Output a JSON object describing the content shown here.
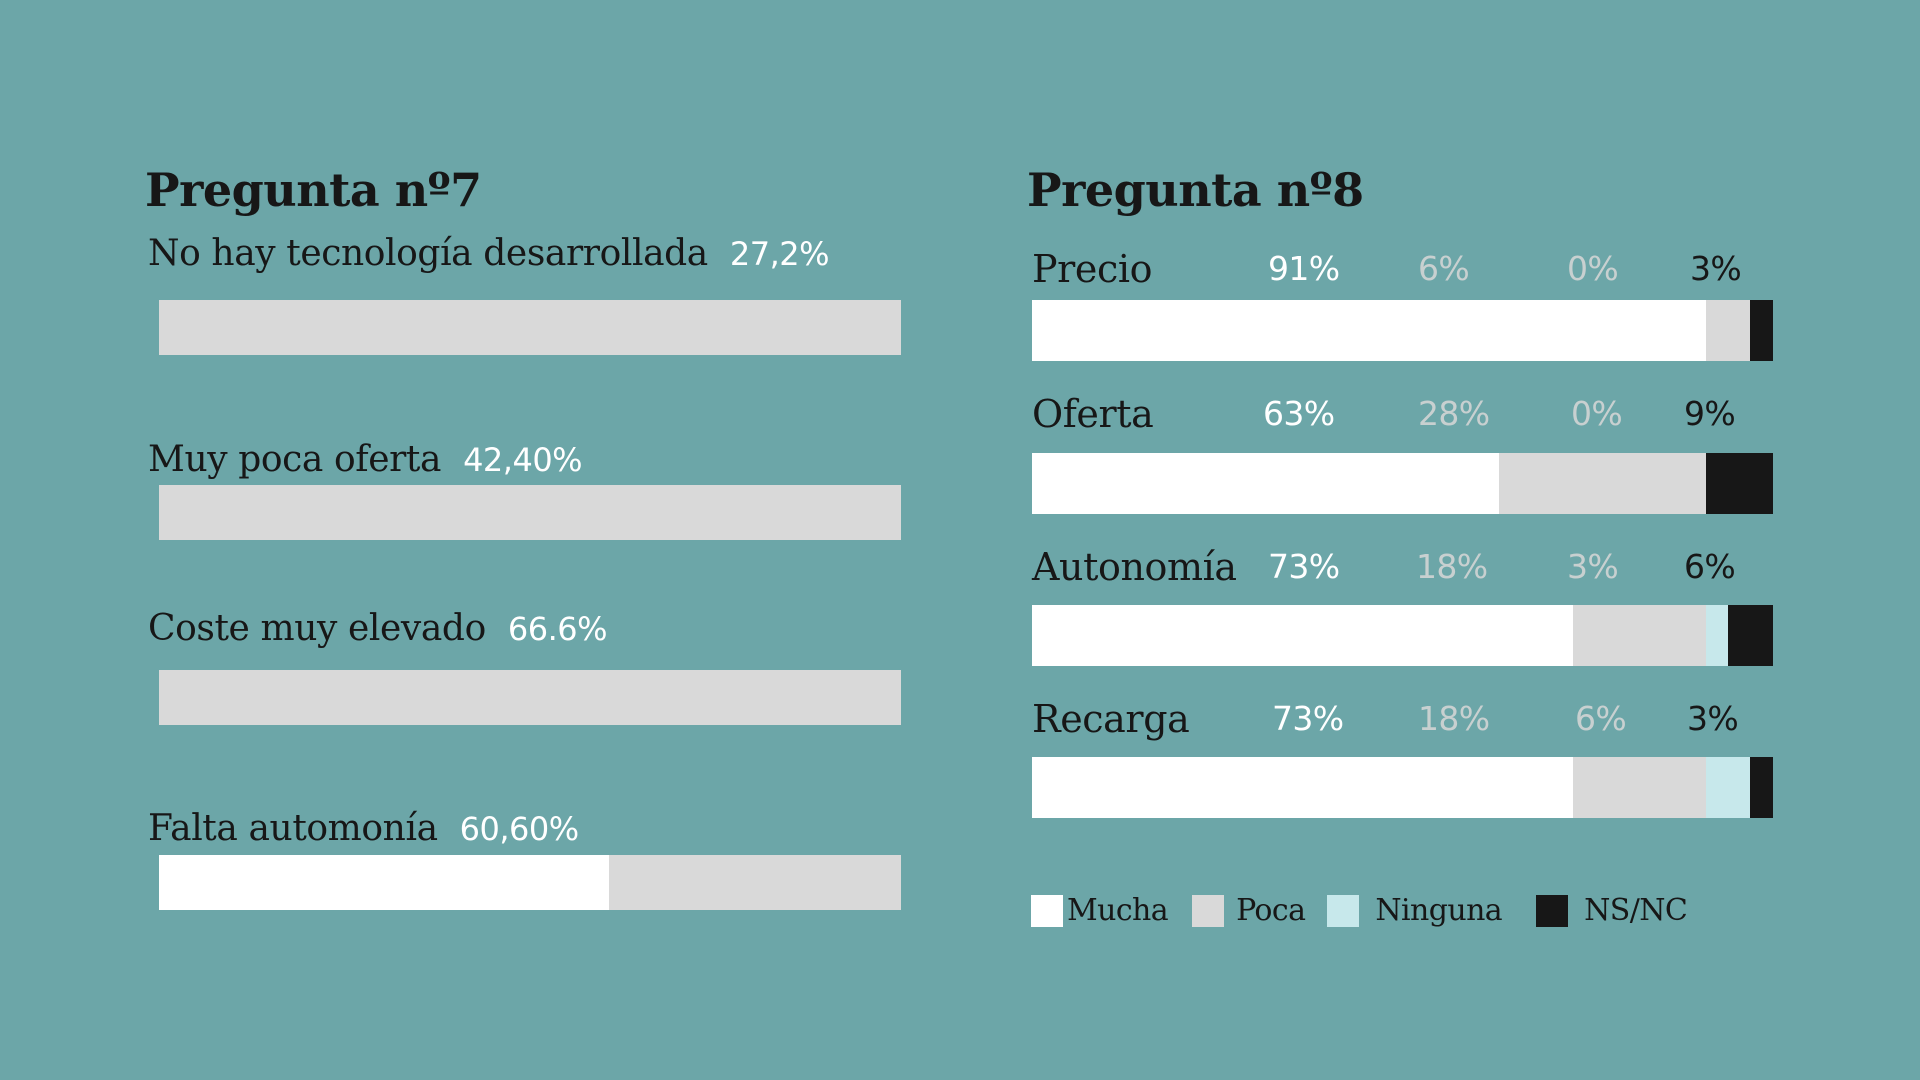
{
  "colors": {
    "background": "#6ca6a8",
    "mucha": "#ffffff",
    "poca": "#d9d9d9",
    "ninguna": "#c7e8eb",
    "nsnc": "#171717",
    "text_dark": "#171717",
    "pct_light": "#ffffff",
    "pct_muted": "#c8d0d0"
  },
  "chart_data": [
    {
      "type": "bar",
      "title": "Pregunta nº7",
      "categories": [
        "No hay tecnología desarrollada",
        "Muy poca oferta",
        "Coste muy elevado",
        "Falta automonía"
      ],
      "value_labels": [
        "27,2%",
        "42,40%",
        "66.6%",
        "60,60%"
      ],
      "values": [
        27.2,
        42.4,
        66.6,
        60.6
      ],
      "fill_colors": [
        "#d9d9d9",
        "#d9d9d9",
        "#d9d9d9",
        "#ffffff"
      ],
      "xlim": [
        0,
        100
      ]
    },
    {
      "type": "bar",
      "stacked": true,
      "orientation": "horizontal",
      "title": "Pregunta nº8",
      "categories": [
        "Precio",
        "Oferta",
        "Autonomía",
        "Recarga"
      ],
      "series": [
        {
          "name": "Mucha",
          "color": "#ffffff",
          "values": [
            91,
            63,
            73,
            73
          ],
          "labels": [
            "91%",
            "63%",
            "73%",
            "73%"
          ]
        },
        {
          "name": "Poca",
          "color": "#d9d9d9",
          "values": [
            6,
            28,
            18,
            18
          ],
          "labels": [
            "6%",
            "28%",
            "18%",
            "18%"
          ]
        },
        {
          "name": "Ninguna",
          "color": "#c7e8eb",
          "values": [
            0,
            0,
            3,
            6
          ],
          "labels": [
            "0%",
            "0%",
            "3%",
            "6%"
          ]
        },
        {
          "name": "NS/NC",
          "color": "#171717",
          "values": [
            3,
            9,
            6,
            3
          ],
          "labels": [
            "3%",
            "9%",
            "6%",
            "3%"
          ]
        }
      ],
      "legend_position": "bottom-left"
    }
  ]
}
